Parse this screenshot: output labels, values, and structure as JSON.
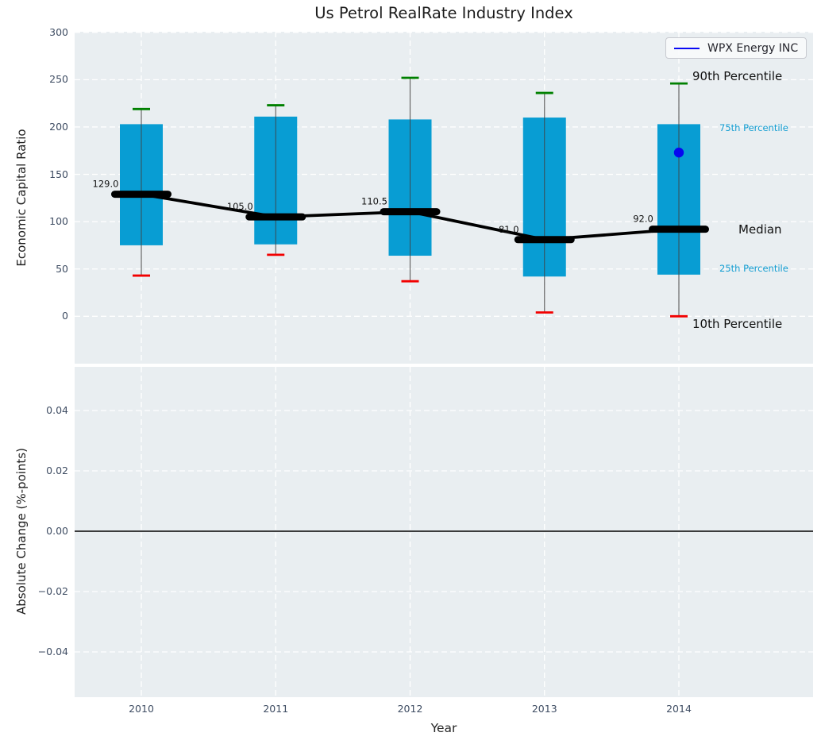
{
  "title": "Us Petrol RealRate Industry Index",
  "x_axis": {
    "label": "Year",
    "tick_labels": [
      "2010",
      "2011",
      "2012",
      "2013",
      "2014"
    ]
  },
  "legend": {
    "label": "WPX Energy INC"
  },
  "colors": {
    "panel_background": "#e9eef1",
    "grid": "#ffffff",
    "box_fill": "#089dd3",
    "whisker": "#666666",
    "cap_high": "#008000",
    "cap_low": "#f20000",
    "median": "#000000",
    "series_blue": "#0606f0",
    "tick_text": "#3f4d63",
    "annotation_cyan": "#149ed2"
  },
  "chart_data": [
    {
      "type": "box",
      "title": "Us Petrol RealRate Industry Index",
      "xlabel": "Year",
      "ylabel": "Economic Capital Ratio",
      "categories": [
        2010,
        2011,
        2012,
        2013,
        2014
      ],
      "ylim": [
        -50,
        300
      ],
      "grid": true,
      "yticks": {
        "values": [
          300,
          250,
          200,
          150,
          100,
          50,
          0
        ],
        "labels": [
          "300",
          "250",
          "200",
          "150",
          "100",
          "50",
          "0"
        ]
      },
      "boxes": [
        {
          "year": 2010,
          "p10": 43,
          "p25": 75,
          "median": 129.0,
          "p75": 203,
          "p90": 219,
          "median_label": "129.0"
        },
        {
          "year": 2011,
          "p10": 65,
          "p25": 76,
          "median": 105.0,
          "p75": 211,
          "p90": 223,
          "median_label": "105.0"
        },
        {
          "year": 2012,
          "p10": 37,
          "p25": 64,
          "median": 110.5,
          "p75": 208,
          "p90": 252,
          "median_label": "110.5"
        },
        {
          "year": 2013,
          "p10": 4,
          "p25": 42,
          "median": 81.0,
          "p75": 210,
          "p90": 236,
          "median_label": "81.0"
        },
        {
          "year": 2014,
          "p10": 0,
          "p25": 44,
          "median": 92.0,
          "p75": 203,
          "p90": 246,
          "median_label": "92.0"
        }
      ],
      "series": [
        {
          "name": "WPX Energy INC",
          "type": "scatter",
          "points": [
            {
              "x": 2014,
              "y": 173
            }
          ]
        }
      ],
      "annotations": [
        "90th Percentile",
        "75th Percentile",
        "Median",
        "25th Percentile",
        "10th Percentile"
      ],
      "legend_position": "upper right"
    },
    {
      "type": "line",
      "xlabel": "Year",
      "ylabel": "Absolute Change (%-points)",
      "categories": [
        2010,
        2011,
        2012,
        2013,
        2014
      ],
      "ylim": [
        -0.055,
        0.055
      ],
      "grid": true,
      "yticks": {
        "values": [
          0.04,
          0.02,
          0.0,
          -0.02,
          -0.04
        ],
        "labels": [
          "0.04",
          "0.02",
          "0.00",
          "−0.02",
          "−0.04"
        ]
      },
      "zero_line": 0.0,
      "series": []
    }
  ]
}
